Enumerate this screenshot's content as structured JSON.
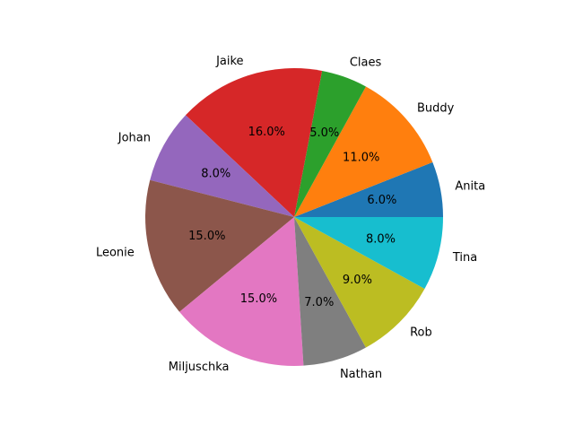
{
  "chart_data": {
    "type": "pie",
    "title": "",
    "start_angle_deg": 0,
    "direction": "counterclockwise",
    "slices": [
      {
        "label": "Anita",
        "value": 6.0,
        "pct_label": "6.0%",
        "color": "#1f77b4"
      },
      {
        "label": "Buddy",
        "value": 11.0,
        "pct_label": "11.0%",
        "color": "#ff7f0e"
      },
      {
        "label": "Claes",
        "value": 5.0,
        "pct_label": "5.0%",
        "color": "#2ca02c"
      },
      {
        "label": "Jaike",
        "value": 16.0,
        "pct_label": "16.0%",
        "color": "#d62728"
      },
      {
        "label": "Johan",
        "value": 8.0,
        "pct_label": "8.0%",
        "color": "#9467bd"
      },
      {
        "label": "Leonie",
        "value": 15.0,
        "pct_label": "15.0%",
        "color": "#8c564b"
      },
      {
        "label": "Miljuschka",
        "value": 15.0,
        "pct_label": "15.0%",
        "color": "#e377c2"
      },
      {
        "label": "Nathan",
        "value": 7.0,
        "pct_label": "7.0%",
        "color": "#7f7f7f"
      },
      {
        "label": "Rob",
        "value": 9.0,
        "pct_label": "9.0%",
        "color": "#bcbd22"
      },
      {
        "label": "Tina",
        "value": 8.0,
        "pct_label": "8.0%",
        "color": "#17becf"
      }
    ]
  }
}
